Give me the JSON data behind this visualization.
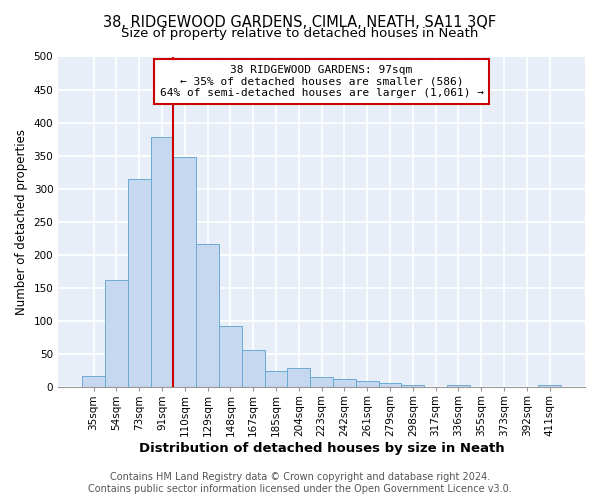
{
  "title1": "38, RIDGEWOOD GARDENS, CIMLA, NEATH, SA11 3QF",
  "title2": "Size of property relative to detached houses in Neath",
  "xlabel": "Distribution of detached houses by size in Neath",
  "ylabel": "Number of detached properties",
  "bar_labels": [
    "35sqm",
    "54sqm",
    "73sqm",
    "91sqm",
    "110sqm",
    "129sqm",
    "148sqm",
    "167sqm",
    "185sqm",
    "204sqm",
    "223sqm",
    "242sqm",
    "261sqm",
    "279sqm",
    "298sqm",
    "317sqm",
    "336sqm",
    "355sqm",
    "373sqm",
    "392sqm",
    "411sqm"
  ],
  "bar_values": [
    17,
    163,
    315,
    378,
    348,
    216,
    93,
    57,
    25,
    29,
    15,
    12,
    9,
    6,
    3,
    0,
    4,
    1,
    1,
    1,
    3
  ],
  "bar_color": "#c5d8f0",
  "bar_edge_color": "#6aaad4",
  "annotation_box_text_line1": "38 RIDGEWOOD GARDENS: 97sqm",
  "annotation_box_text_line2": "← 35% of detached houses are smaller (586)",
  "annotation_box_text_line3": "64% of semi-detached houses are larger (1,061) →",
  "annotation_box_color": "#ffffff",
  "annotation_box_edge_color": "#cc0000",
  "vline_color": "#cc0000",
  "vline_x": 3.5,
  "ylim": [
    0,
    500
  ],
  "yticks": [
    0,
    50,
    100,
    150,
    200,
    250,
    300,
    350,
    400,
    450,
    500
  ],
  "footer1": "Contains HM Land Registry data © Crown copyright and database right 2024.",
  "footer2": "Contains public sector information licensed under the Open Government Licence v3.0.",
  "bg_color": "#ffffff",
  "plot_bg_color": "#e8eef8",
  "grid_color": "#ffffff",
  "title1_fontsize": 10.5,
  "title2_fontsize": 9.5,
  "xlabel_fontsize": 9.5,
  "ylabel_fontsize": 8.5,
  "tick_fontsize": 7.5,
  "annot_fontsize": 8,
  "footer_fontsize": 7
}
